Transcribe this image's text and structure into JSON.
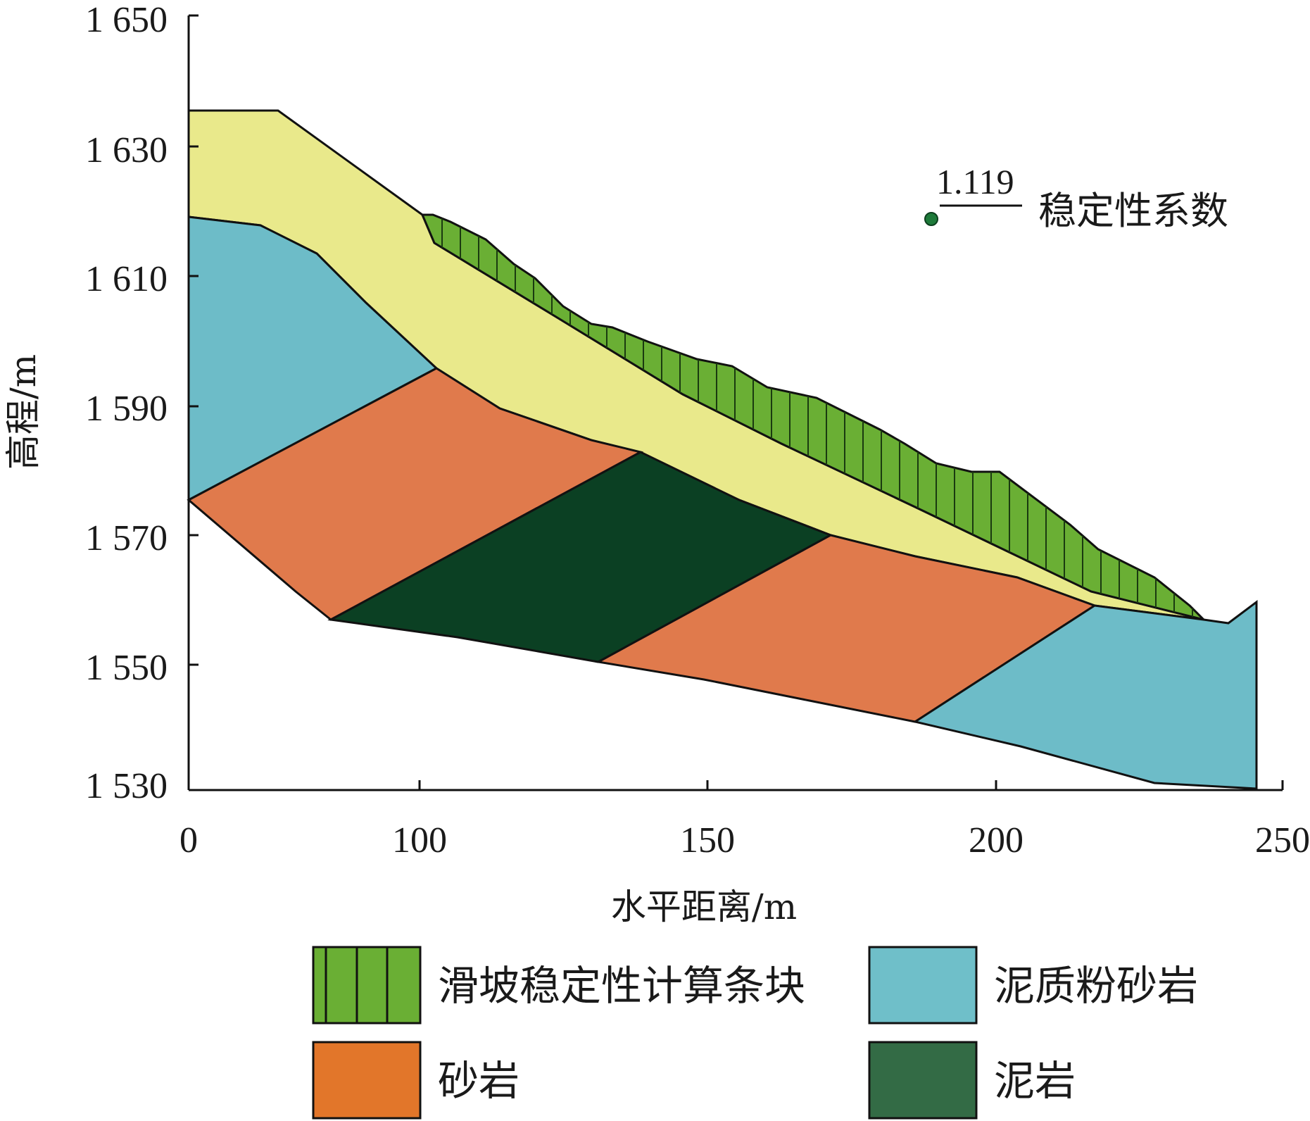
{
  "axes": {
    "x_title": "水平距离/m",
    "y_title": "高程/m",
    "x_ticks": [
      "0",
      "100",
      "150",
      "200",
      "250"
    ],
    "y_ticks": [
      "1 650",
      "1 630",
      "1 610",
      "1 590",
      "1 570",
      "1 550",
      "1 530"
    ]
  },
  "stability": {
    "value": "1.119",
    "label": "稳定性系数",
    "marker_color": "#1e7a3a"
  },
  "legend": [
    {
      "label": "滑坡稳定性计算条块",
      "color": "#6aaf34",
      "pattern": "slices"
    },
    {
      "label": "泥质粉砂岩",
      "color": "#6fbfc9",
      "pattern": "solid"
    },
    {
      "label": "砂岩",
      "color": "#e2762a",
      "pattern": "solid"
    },
    {
      "label": "泥岩",
      "color": "#336b45",
      "pattern": "solid"
    }
  ],
  "layers": [
    {
      "name": "fill-layer",
      "color": "#e9e98b"
    },
    {
      "name": "silty-mudstone",
      "color": "#6dbcc8"
    },
    {
      "name": "sandstone",
      "color": "#e07a4c"
    },
    {
      "name": "mudstone",
      "color": "#0b4023"
    },
    {
      "name": "slide-slices",
      "color": "#6aaf34"
    }
  ]
}
